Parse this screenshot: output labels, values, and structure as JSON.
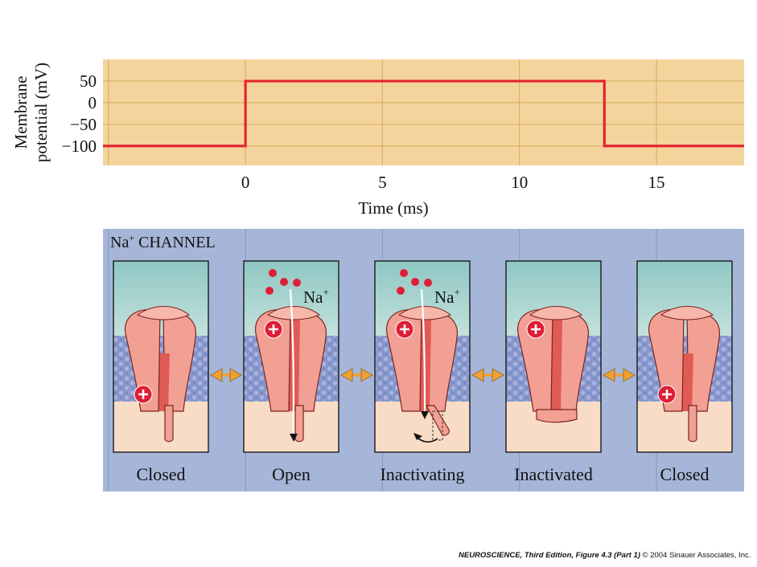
{
  "chart_data": {
    "type": "line",
    "ylabel_line1": "Membrane",
    "ylabel_line2": "potential (mV)",
    "xlabel": "Time (ms)",
    "x_ticks": [
      0,
      5,
      10,
      15
    ],
    "y_ticks": [
      50,
      0,
      -50,
      -100
    ],
    "y_tick_labels": [
      "50",
      "0",
      "−50",
      "−100"
    ],
    "xlim": [
      -5.2,
      18.2
    ],
    "ylim": [
      -145,
      100
    ],
    "grid": true,
    "series": [
      {
        "x": [
          -5.2,
          0,
          0,
          13.1,
          13.1,
          18.2
        ],
        "y": [
          -100,
          -100,
          50,
          50,
          -100,
          -100
        ],
        "color": "#e3262f"
      }
    ],
    "background_color": "#f3d49d",
    "gridline_color": "#dcb163"
  },
  "channel_panel": {
    "title_prefix": "Na",
    "title_sup": "+",
    "title_suffix": " CHANNEL",
    "background_color": "#a6b6d8",
    "states": [
      {
        "label": "Closed",
        "gate": "closed",
        "plus_position": "low"
      },
      {
        "label": "Open",
        "gate": "open",
        "plus_position": "high",
        "ion_label": "Na",
        "ion_sup": "+"
      },
      {
        "label": "Inactivating",
        "gate": "inactivating",
        "plus_position": "high",
        "ion_label": "Na",
        "ion_sup": "+"
      },
      {
        "label": "Inactivated",
        "gate": "inactivated",
        "plus_position": "high"
      },
      {
        "label": "Closed",
        "gate": "closed",
        "plus_position": "low"
      }
    ],
    "colors": {
      "channel": "#f3a094",
      "channel_dark": "#e05a56",
      "extracellular": "#a9d3cf",
      "intracellular": "#f8dcc6",
      "membrane": "#8b9bd1",
      "ion": "#dd1f36",
      "arrow": "#f0a030"
    }
  },
  "credit": {
    "bold": "NEUROSCIENCE, Third Edition, Figure 4.3 (Part 1)",
    "rest": "  © 2004 Sinauer Associates, Inc."
  }
}
